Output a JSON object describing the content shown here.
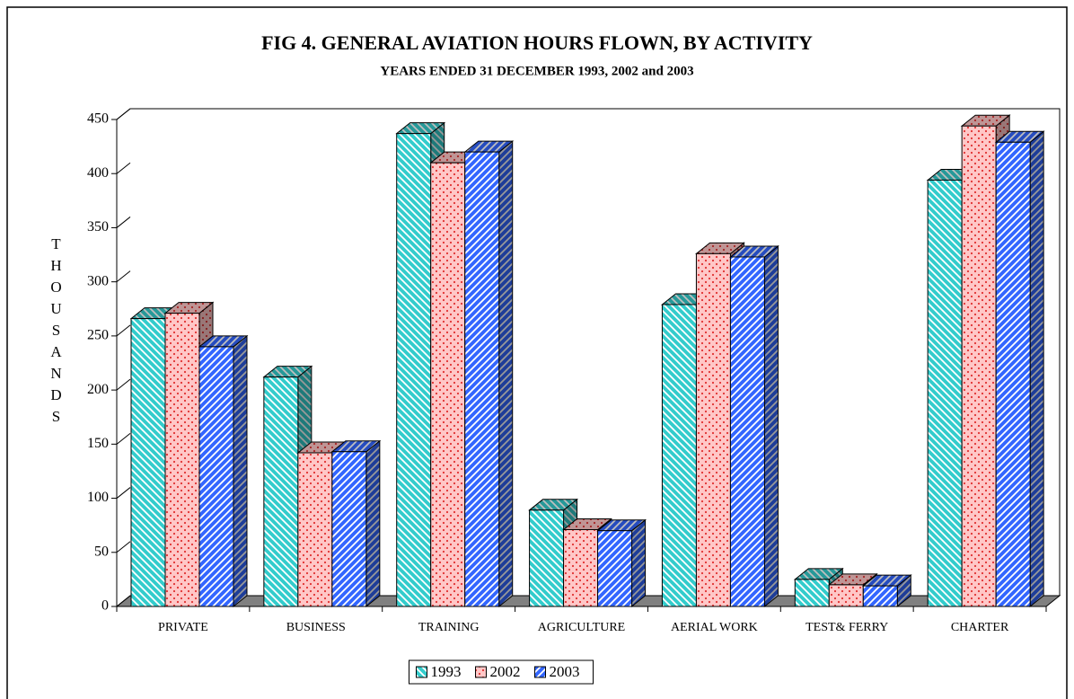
{
  "chart_data": {
    "type": "bar3d",
    "title": "FIG 4.  GENERAL AVIATION HOURS FLOWN, BY ACTIVITY",
    "subtitle": "YEARS ENDED 31 DECEMBER 1993, 2002 and 2003",
    "y_label": "THOUSANDS",
    "categories": [
      "PRIVATE",
      "BUSINESS",
      "TRAINING",
      "AGRICULTURE",
      "AERIAL WORK",
      "TEST& FERRY",
      "CHARTER"
    ],
    "series": [
      {
        "name": "1993",
        "color": "#33cccc",
        "values": [
          266,
          212,
          437,
          89,
          279,
          25,
          394
        ]
      },
      {
        "name": "2002",
        "color": "#ff9999",
        "values": [
          271,
          142,
          410,
          71,
          326,
          20,
          444
        ]
      },
      {
        "name": "2003",
        "color": "#3366ff",
        "values": [
          240,
          143,
          420,
          70,
          323,
          19,
          429
        ]
      }
    ],
    "ylim": [
      0,
      450
    ],
    "yticks": [
      0,
      50,
      100,
      150,
      200,
      250,
      300,
      350,
      400,
      450
    ],
    "legend": "bottom"
  }
}
